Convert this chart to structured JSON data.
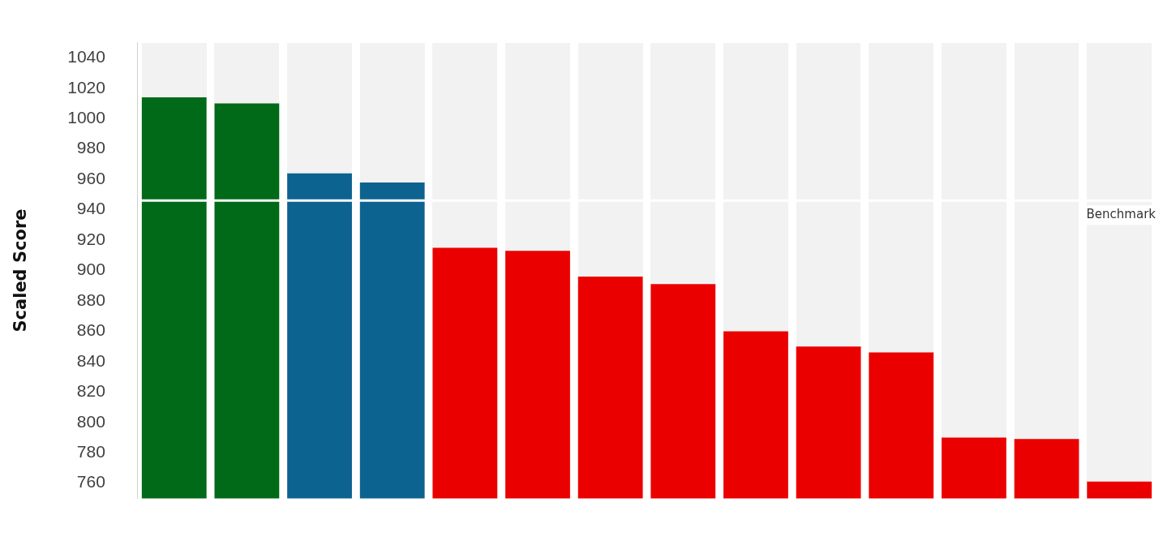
{
  "chart_data": {
    "type": "bar",
    "ylabel": "Scaled Score",
    "categories": [
      null,
      null,
      null,
      null,
      null,
      null,
      null,
      null,
      null,
      null,
      null,
      null,
      null,
      null
    ],
    "series": [
      {
        "colors": [
          "#006a18",
          "#006a18",
          "#0d638f",
          "#0d638f",
          "#eb0000",
          "#eb0000",
          "#eb0000",
          "#eb0000",
          "#eb0000",
          "#eb0000",
          "#eb0000",
          "#eb0000",
          "#eb0000",
          "#eb0000"
        ],
        "values": [
          1014,
          1010,
          964,
          958,
          915,
          913,
          896,
          891,
          860,
          850,
          846,
          790,
          789,
          761
        ]
      }
    ],
    "ylim": [
      750,
      1050
    ],
    "yticks": [
      760,
      780,
      800,
      820,
      840,
      860,
      880,
      900,
      920,
      940,
      960,
      980,
      1000,
      1020,
      1040
    ],
    "ref_lines": [
      {
        "axis": "y",
        "value": 946,
        "label": "Benchmark",
        "color": "#ffffff"
      }
    ],
    "grid": false,
    "legend": false
  }
}
